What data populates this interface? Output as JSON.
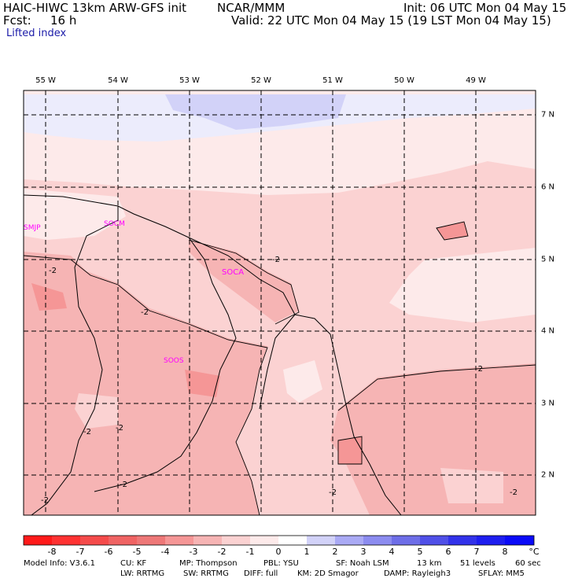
{
  "header": {
    "model_title": "HAIC-HIWC 13km ARW-GFS init",
    "org": "NCAR/MMM",
    "init": "Init: 06 UTC Mon 04 May 15",
    "fcst_label": "Fcst:",
    "fcst_value": "16 h",
    "valid": "Valid: 22 UTC Mon 04 May 15 (19 LST Mon 04 May 15)",
    "field": "Lifted index"
  },
  "map": {
    "lon_labels": [
      "55 W",
      "54 W",
      "53 W",
      "52 W",
      "51 W",
      "50 W",
      "49 W"
    ],
    "lat_labels": [
      "7 N",
      "6 N",
      "5 N",
      "4 N",
      "3 N",
      "2 N"
    ],
    "stations": [
      "SMJP",
      "SOCM",
      "SOCA",
      "SOOS"
    ],
    "contour_label": "-2",
    "colors": {
      "neg8": "#ff1a1a",
      "neg7": "#ff3232",
      "neg6": "#f54b4b",
      "neg5": "#f06464",
      "neg4": "#ee7878",
      "neg3": "#f59696",
      "neg2": "#f6b4b4",
      "neg1": "#fbd2d2",
      "zero": "#fdeaea",
      "pos1": "#d2d2f8",
      "pos2": "#aaaaf5",
      "pos3": "#8c8cf0",
      "pos4": "#6e6ee8",
      "pos5": "#5050e8",
      "pos6": "#2828ee",
      "pos7": "#1414f5",
      "station": "#ff00ff"
    }
  },
  "colorbar": {
    "labels": [
      "-8",
      "-7",
      "-6",
      "-5",
      "-4",
      "-3",
      "-2",
      "-1",
      "0",
      "1",
      "2",
      "3",
      "4",
      "5",
      "6",
      "7",
      "8"
    ],
    "unit": "°C"
  },
  "footer": {
    "line1": [
      "Model Info: V3.6.1",
      "CU: KF",
      "MP: Thompson",
      "PBL: YSU",
      "SF: Noah LSM",
      "13 km",
      "51 levels",
      "60 sec"
    ],
    "line2": [
      "LW: RRTMG",
      "SW: RRTMG",
      "DIFF: full",
      "KM: 2D Smagor",
      "DAMP: Rayleigh3",
      "SFLAY: MM5"
    ]
  }
}
